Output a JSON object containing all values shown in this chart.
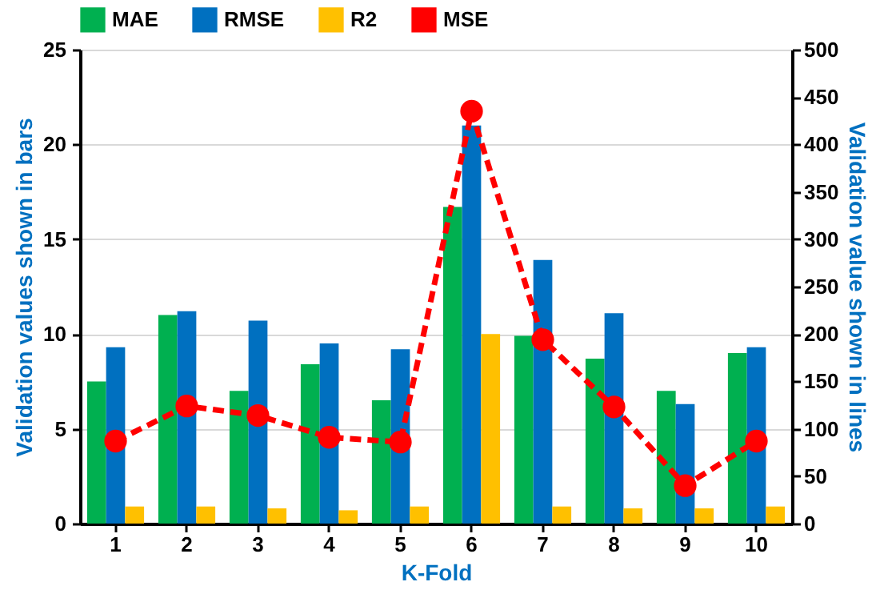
{
  "chart_data": {
    "type": "bar",
    "categories": [
      "1",
      "2",
      "3",
      "4",
      "5",
      "6",
      "7",
      "8",
      "9",
      "10"
    ],
    "xlabel": "K-Fold",
    "ylabel": "Validation values shown in bars",
    "y2label": "Validation value shown in lines",
    "ylim": [
      0,
      25
    ],
    "yticks": [
      0,
      5,
      10,
      15,
      20,
      25
    ],
    "y2lim": [
      0,
      500
    ],
    "y2ticks": [
      0,
      50,
      100,
      150,
      200,
      250,
      300,
      350,
      400,
      450,
      500
    ],
    "grid": "y",
    "legend": "top",
    "series": [
      {
        "name": "MAE",
        "color": "#00b050",
        "values": [
          7.5,
          11.0,
          7.0,
          8.4,
          6.5,
          16.7,
          9.9,
          8.7,
          7.0,
          9.0
        ]
      },
      {
        "name": "RMSE",
        "color": "#0070c0",
        "values": [
          9.3,
          11.2,
          10.7,
          9.5,
          9.2,
          21.0,
          13.9,
          11.1,
          6.3,
          9.3
        ]
      },
      {
        "name": "R2",
        "color": "#ffc000",
        "values": [
          0.9,
          0.9,
          0.8,
          0.7,
          0.9,
          10.0,
          0.9,
          0.8,
          0.8,
          0.9
        ]
      },
      {
        "name": "MSE",
        "color": "#ff0000",
        "type": "line",
        "axis": "y2",
        "marker": "circle",
        "line_style": "dashed",
        "values": [
          87,
          124,
          114,
          91,
          86,
          435,
          194,
          123,
          40,
          87
        ]
      }
    ]
  }
}
